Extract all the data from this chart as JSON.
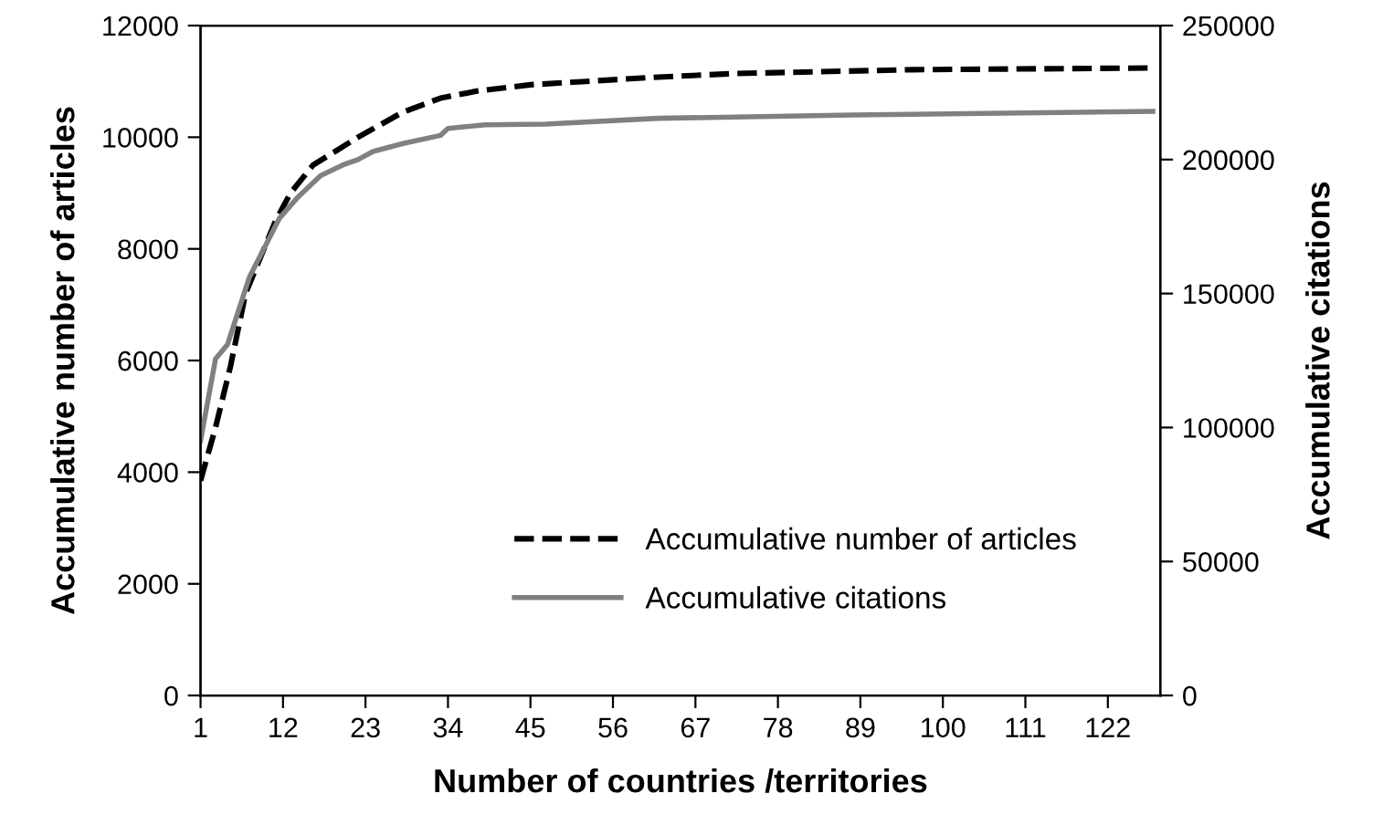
{
  "chart_data": {
    "type": "line",
    "xlabel": "Number of countries /territories",
    "ylabel": "Accumulative number of articles",
    "y2label": "Accumulative citations",
    "xlim": [
      1,
      129
    ],
    "xticks": [
      1,
      12,
      23,
      34,
      45,
      56,
      67,
      78,
      89,
      100,
      111,
      122
    ],
    "ylim": [
      0,
      12000
    ],
    "yticks": [
      0,
      2000,
      4000,
      6000,
      8000,
      10000,
      12000
    ],
    "y2lim": [
      0,
      250000
    ],
    "y2ticks": [
      0,
      50000,
      100000,
      150000,
      200000,
      250000
    ],
    "grid": false,
    "legend": "bottom",
    "marker": "none",
    "series": [
      {
        "name": "Accumulative number of articles",
        "color": "#000000",
        "line_style": "dashed",
        "x": [
          1,
          3,
          5,
          7,
          11,
          13,
          16,
          22,
          28,
          33,
          38,
          45,
          61,
          72,
          96,
          128
        ],
        "values": [
          3850,
          4800,
          5900,
          7200,
          8500,
          9000,
          9500,
          10000,
          10450,
          10700,
          10830,
          10940,
          11070,
          11140,
          11210,
          11240
        ]
      },
      {
        "name": "Accumulative citations",
        "color": "#808080",
        "line_style": "solid",
        "axis": "y2",
        "x": [
          1,
          3,
          4.6,
          7.5,
          11.5,
          14,
          17,
          20,
          22,
          24,
          28,
          33,
          34,
          39,
          47,
          62,
          88,
          128
        ],
        "values": [
          95000,
          125600,
          131000,
          156000,
          178000,
          186000,
          194000,
          198000,
          200000,
          203000,
          206000,
          209000,
          211600,
          213000,
          213200,
          215400,
          216600,
          218000
        ]
      }
    ]
  }
}
